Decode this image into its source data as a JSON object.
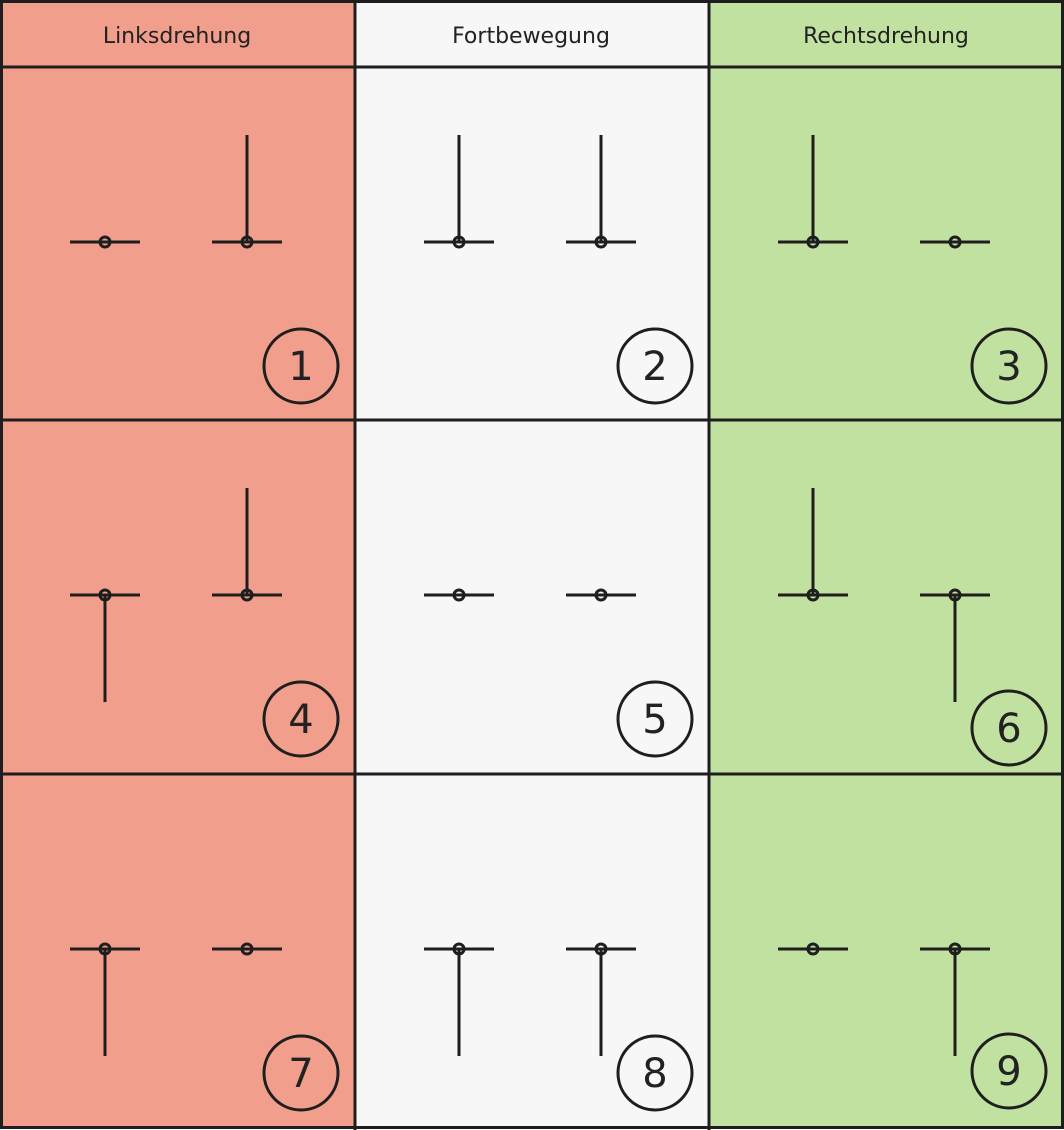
{
  "columns": [
    {
      "label": "Linksdrehung",
      "color": "#f29e8c"
    },
    {
      "label": "Fortbewegung",
      "color": "#f7f7f7"
    },
    {
      "label": "Rechtsdrehung",
      "color": "#c1e1a1"
    }
  ],
  "header_color": "#f7f7f7",
  "line_color": "#1e1e1e",
  "cells": [
    {
      "number": "1",
      "legs": [
        "none",
        "up"
      ]
    },
    {
      "number": "2",
      "legs": [
        "up",
        "up"
      ]
    },
    {
      "number": "3",
      "legs": [
        "up",
        "none"
      ]
    },
    {
      "number": "4",
      "legs": [
        "down",
        "up"
      ]
    },
    {
      "number": "5",
      "legs": [
        "none",
        "none"
      ]
    },
    {
      "number": "6",
      "legs": [
        "up",
        "down"
      ]
    },
    {
      "number": "7",
      "legs": [
        "down",
        "none"
      ]
    },
    {
      "number": "8",
      "legs": [
        "down",
        "down"
      ]
    },
    {
      "number": "9",
      "legs": [
        "none",
        "down"
      ]
    }
  ]
}
